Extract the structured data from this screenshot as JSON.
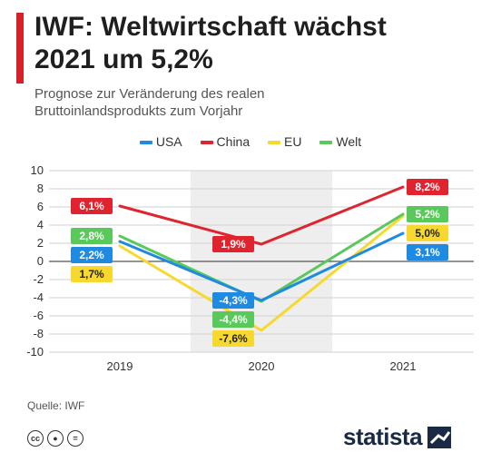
{
  "header": {
    "title_line1": "IWF: Weltwirtschaft wächst",
    "title_line2": "2021 um 5,2%",
    "subtitle_line1": "Prognose zur Veränderung des realen",
    "subtitle_line2": "Bruttoinlandsprodukts zum Vorjahr"
  },
  "colors": {
    "accent": "#d6202a",
    "usa": "#1f8ae0",
    "china": "#e0242f",
    "eu": "#f7d82f",
    "welt": "#5ac85a",
    "band": "#eeeeee",
    "brand": "#1a2a44"
  },
  "chart_data": {
    "type": "line",
    "categories": [
      "2019",
      "2020",
      "2021"
    ],
    "ylim": [
      -10,
      10
    ],
    "yticks": [
      10,
      8,
      6,
      4,
      2,
      0,
      -2,
      -4,
      -6,
      -8,
      -10
    ],
    "legend_position": "top-center",
    "grid": true,
    "series": [
      {
        "name": "USA",
        "color": "#1f8ae0",
        "values": [
          2.2,
          -4.3,
          3.1
        ],
        "labels": [
          "2,2%",
          "-4,3%",
          "3,1%"
        ]
      },
      {
        "name": "China",
        "color": "#e0242f",
        "values": [
          6.1,
          1.9,
          8.2
        ],
        "labels": [
          "6,1%",
          "1,9%",
          "8,2%"
        ]
      },
      {
        "name": "EU",
        "color": "#f7d82f",
        "values": [
          1.7,
          -7.6,
          5.0
        ],
        "labels": [
          "1,7%",
          "-7,6%",
          "5,0%"
        ]
      },
      {
        "name": "Welt",
        "color": "#5ac85a",
        "values": [
          2.8,
          -4.4,
          5.2
        ],
        "labels": [
          "2,8%",
          "-4,4%",
          "5,2%"
        ]
      }
    ]
  },
  "footer": {
    "source": "Quelle: IWF",
    "brand": "statista",
    "license_icons": [
      "cc-icon",
      "by-person-icon",
      "nd-equals-icon"
    ]
  }
}
